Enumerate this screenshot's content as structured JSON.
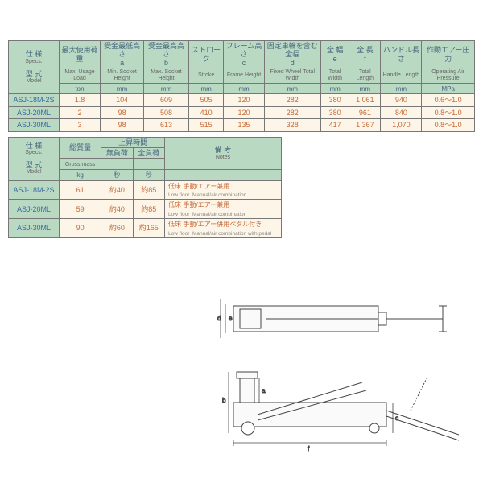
{
  "table1": {
    "corner": {
      "jp": "仕 様",
      "en": "Specs.",
      "jp2": "型 式",
      "en2": "Model"
    },
    "cols": [
      {
        "jp": "最大使用荷重",
        "en": "Max. Usage Load",
        "unit": "ton",
        "key": "load"
      },
      {
        "jp": "受金最低高さ",
        "letter": "a",
        "en": "Min. Socket Height",
        "unit": "mm",
        "key": "minH"
      },
      {
        "jp": "受金最高高さ",
        "letter": "b",
        "en": "Max. Socket Height",
        "unit": "mm",
        "key": "maxH"
      },
      {
        "jp": "ストローク",
        "en": "Stroke",
        "unit": "mm",
        "key": "stroke"
      },
      {
        "jp": "フレーム高さ",
        "letter": "c",
        "en": "Frame Height",
        "unit": "mm",
        "key": "frame"
      },
      {
        "jp": "固定車輪を含む全幅",
        "letter": "d",
        "en": "Fixed Wheel Total Width",
        "unit": "mm",
        "key": "fixed"
      },
      {
        "jp": "全 幅",
        "letter": "e",
        "en": "Total Width",
        "unit": "mm",
        "key": "tw"
      },
      {
        "jp": "全 長",
        "letter": "f",
        "en": "Total Length",
        "unit": "mm",
        "key": "tl"
      },
      {
        "jp": "ハンドル長さ",
        "en": "Handle Length",
        "unit": "mm",
        "key": "hl"
      },
      {
        "jp": "作動エアー圧力",
        "en": "Operating Air Pressure",
        "unit": "MPa",
        "key": "air"
      }
    ],
    "rows": [
      {
        "model": "ASJ-18M-2S",
        "load": "1.8",
        "minH": "104",
        "maxH": "609",
        "stroke": "505",
        "frame": "120",
        "fixed": "282",
        "tw": "380",
        "tl": "1,061",
        "hl": "940",
        "air": "0.6〜1.0"
      },
      {
        "model": "ASJ-20ML",
        "load": "2",
        "minH": "98",
        "maxH": "508",
        "stroke": "410",
        "frame": "120",
        "fixed": "282",
        "tw": "380",
        "tl": "961",
        "hl": "840",
        "air": "0.8〜1.0"
      },
      {
        "model": "ASJ-30ML",
        "load": "3",
        "minH": "98",
        "maxH": "613",
        "stroke": "515",
        "frame": "135",
        "fixed": "328",
        "tw": "417",
        "tl": "1,367",
        "hl": "1,070",
        "air": "0.8〜1.0"
      }
    ]
  },
  "table2": {
    "corner": {
      "jp": "仕 様",
      "en": "Specs.",
      "jp2": "型 式",
      "en2": "Model"
    },
    "gross": {
      "jp": "総質量",
      "en": "Gross mass",
      "unit": "kg"
    },
    "lift": {
      "jp": "上昇時間",
      "noload_jp": "無負荷",
      "full_jp": "全負荷",
      "unit": "秒"
    },
    "notes": {
      "jp": "備 考",
      "en": "Notes"
    },
    "rows": [
      {
        "model": "ASJ-18M-2S",
        "kg": "61",
        "noload": "約40",
        "full": "約85",
        "note_jp": "低床",
        "note_sub": "Low floor",
        "note2_jp": "手動/エアー兼用",
        "note2_en": "Manual/air combination"
      },
      {
        "model": "ASJ-20ML",
        "kg": "59",
        "noload": "約40",
        "full": "約85",
        "note_jp": "低床",
        "note_sub": "Low floor",
        "note2_jp": "手動/エアー兼用",
        "note2_en": "Manual/air combination"
      },
      {
        "model": "ASJ-30ML",
        "kg": "90",
        "noload": "約60",
        "full": "約165",
        "note_jp": "低床",
        "note_sub": "Low floor",
        "note2_jp": "手動/エアー併用ペダル付き",
        "note2_en": "Manual/air combination with pedal"
      }
    ]
  },
  "diagram_labels": {
    "a": "a",
    "b": "b",
    "c": "c",
    "d": "d",
    "e": "e",
    "f": "f"
  }
}
